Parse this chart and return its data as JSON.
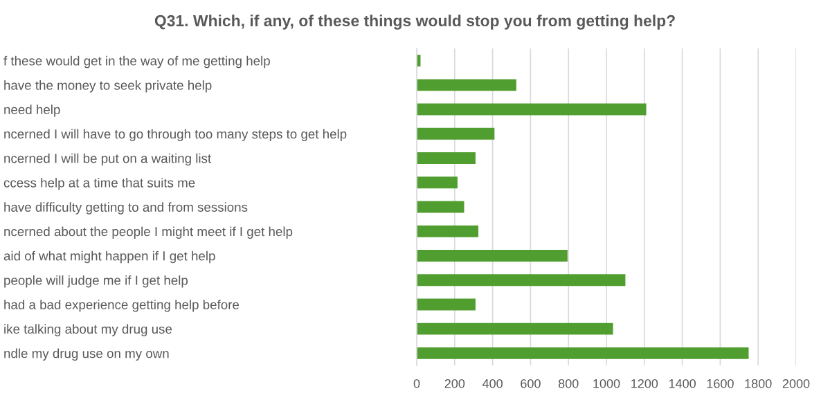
{
  "chart_data": {
    "type": "bar",
    "orientation": "horizontal",
    "title": "Q31. Which, if any, of these things would stop you from getting help?",
    "categories": [
      "f these would get in the way of me getting help",
      "have the money to seek private help",
      "need help",
      "ncerned I will have to go through too many steps to get help",
      "ncerned I will be put on a waiting list",
      "ccess help at a time that suits me",
      "have difficulty getting to and from sessions",
      "ncerned about the people I might meet if I get help",
      "aid of what might happen if I get help",
      "people will judge me if I get help",
      "had a bad experience getting help before",
      "ike talking about my drug use",
      "ndle my drug use on my own"
    ],
    "values": [
      20,
      525,
      1210,
      410,
      310,
      215,
      250,
      325,
      795,
      1100,
      310,
      1035,
      1750
    ],
    "color": "#509e2f",
    "xlim": [
      0,
      2000
    ],
    "xticks": [
      0,
      200,
      400,
      600,
      800,
      1000,
      1200,
      1400,
      1600,
      1800,
      2000
    ],
    "grid": "x"
  }
}
